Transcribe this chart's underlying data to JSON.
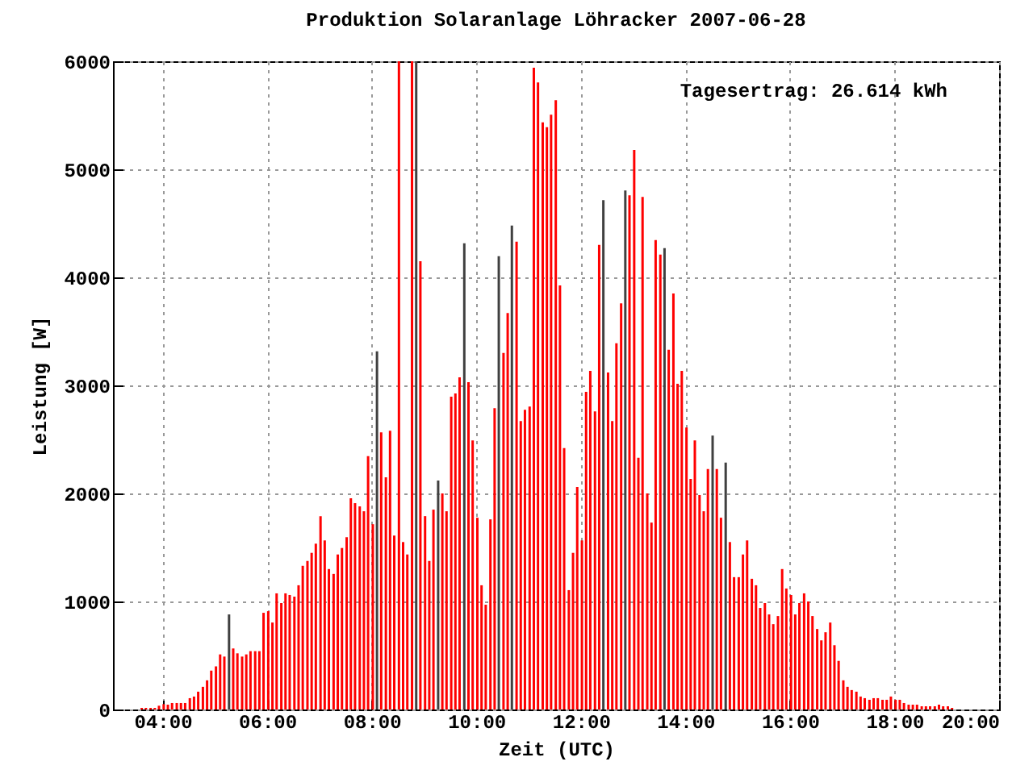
{
  "chart_data": {
    "type": "bar",
    "title": "Produktion Solaranlage Löhracker 2007-06-28",
    "xlabel": "Zeit (UTC)",
    "ylabel": "Leistung [W]",
    "annotations": [
      "Tagesertrag: 26.614 kWh"
    ],
    "xlim": [
      3.05,
      20
    ],
    "ylim": [
      0,
      6000
    ],
    "xticks": [
      {
        "value": 4,
        "label": "04:00"
      },
      {
        "value": 6,
        "label": "06:00"
      },
      {
        "value": 8,
        "label": "08:00"
      },
      {
        "value": 10,
        "label": "10:00"
      },
      {
        "value": 12,
        "label": "12:00"
      },
      {
        "value": 14,
        "label": "14:00"
      },
      {
        "value": 16,
        "label": "16:00"
      },
      {
        "value": 18,
        "label": "18:00"
      },
      {
        "value": 20,
        "label": "20:00"
      }
    ],
    "yticks": [
      0,
      1000,
      2000,
      3000,
      4000,
      5000,
      6000
    ],
    "grid": true,
    "series": [
      {
        "color": "#ff0000",
        "x": [
          3.6,
          3.68,
          3.77,
          3.85,
          3.93,
          4.02,
          4.1,
          4.18,
          4.27,
          4.35,
          4.43,
          4.52,
          4.6,
          4.68,
          4.77,
          4.85,
          4.93,
          5.02,
          5.1,
          5.18,
          5.35,
          5.43,
          5.52,
          5.6,
          5.68,
          5.77,
          5.85,
          5.93,
          6.02,
          6.1,
          6.18,
          6.27,
          6.35,
          6.43,
          6.52,
          6.6,
          6.68,
          6.77,
          6.85,
          6.93,
          7.02,
          7.1,
          7.18,
          7.27,
          7.35,
          7.43,
          7.52,
          7.6,
          7.68,
          7.77,
          7.85,
          7.93,
          8.02,
          8.18,
          8.27,
          8.35,
          8.43,
          8.52,
          8.6,
          8.68,
          8.77,
          8.93,
          9.02,
          9.1,
          9.18,
          9.35,
          9.43,
          9.52,
          9.6,
          9.68,
          9.85,
          9.93,
          10.02,
          10.1,
          10.18,
          10.27,
          10.35,
          10.52,
          10.6,
          10.77,
          10.85,
          10.93,
          11.02,
          11.1,
          11.18,
          11.27,
          11.35,
          11.43,
          11.52,
          11.6,
          11.68,
          11.77,
          11.85,
          11.93,
          12.02,
          12.1,
          12.18,
          12.27,
          12.35,
          12.52,
          12.6,
          12.68,
          12.77,
          12.93,
          13.02,
          13.1,
          13.18,
          13.27,
          13.35,
          13.43,
          13.52,
          13.68,
          13.77,
          13.85,
          13.93,
          14.02,
          14.1,
          14.18,
          14.27,
          14.35,
          14.43,
          14.6,
          14.68,
          14.85,
          14.93,
          15.02,
          15.1,
          15.18,
          15.27,
          15.35,
          15.43,
          15.52,
          15.6,
          15.68,
          15.77,
          15.85,
          15.93,
          16.02,
          16.1,
          16.18,
          16.27,
          16.35,
          16.43,
          16.52,
          16.6,
          16.68,
          16.77,
          16.85,
          16.93,
          17.02,
          17.1,
          17.18,
          17.27,
          17.35,
          17.43,
          17.52,
          17.6,
          17.68,
          17.77,
          17.85,
          17.93,
          18.02,
          18.1,
          18.18,
          18.27,
          18.35,
          18.43,
          18.52,
          18.6,
          18.68,
          18.77,
          18.85,
          18.93,
          19.02,
          19.1
        ],
        "values": [
          15,
          15,
          15,
          15,
          35,
          50,
          45,
          60,
          60,
          60,
          60,
          105,
          120,
          165,
          210,
          270,
          360,
          400,
          510,
          490,
          565,
          520,
          490,
          510,
          540,
          540,
          540,
          895,
          910,
          805,
          1075,
          985,
          1075,
          1060,
          1045,
          1150,
          1330,
          1375,
          1450,
          1535,
          1790,
          1565,
          1300,
          1255,
          1435,
          1495,
          1595,
          1955,
          1910,
          1880,
          1835,
          2345,
          1715,
          2565,
          2150,
          2580,
          1610,
          6000,
          1550,
          1435,
          6000,
          4150,
          1790,
          1375,
          1850,
          2000,
          1835,
          2895,
          2925,
          3075,
          3030,
          2490,
          1775,
          1150,
          970,
          1760,
          2790,
          3300,
          3670,
          4330,
          2670,
          2775,
          2805,
          5940,
          5805,
          5435,
          5390,
          5505,
          5640,
          3925,
          2420,
          1105,
          1450,
          2060,
          1565,
          2940,
          3135,
          2760,
          4300,
          3120,
          2670,
          3390,
          3760,
          4760,
          5180,
          2330,
          4745,
          2000,
          1730,
          4345,
          4210,
          3330,
          3850,
          3015,
          3135,
          2610,
          2135,
          2490,
          1985,
          1835,
          2225,
          2225,
          1775,
          1550,
          1225,
          1225,
          1435,
          1565,
          1210,
          1150,
          940,
          985,
          880,
          790,
          865,
          1300,
          1120,
          1060,
          880,
          985,
          1075,
          1000,
          865,
          745,
          640,
          715,
          805,
          595,
          450,
          270,
          210,
          180,
          165,
          120,
          105,
          90,
          105,
          105,
          90,
          90,
          120,
          90,
          90,
          60,
          45,
          45,
          45,
          30,
          30,
          30,
          30,
          45,
          30,
          30,
          15
        ]
      },
      {
        "color": "#404040",
        "x": [
          5.27,
          8.1,
          8.85,
          9.27,
          9.77,
          10.43,
          10.68,
          12.43,
          12.85,
          13.6,
          14.52,
          14.77
        ],
        "values": [
          880,
          3315,
          6000,
          2120,
          4315,
          4195,
          4480,
          4715,
          4805,
          4270,
          2535,
          2285
        ]
      }
    ]
  }
}
